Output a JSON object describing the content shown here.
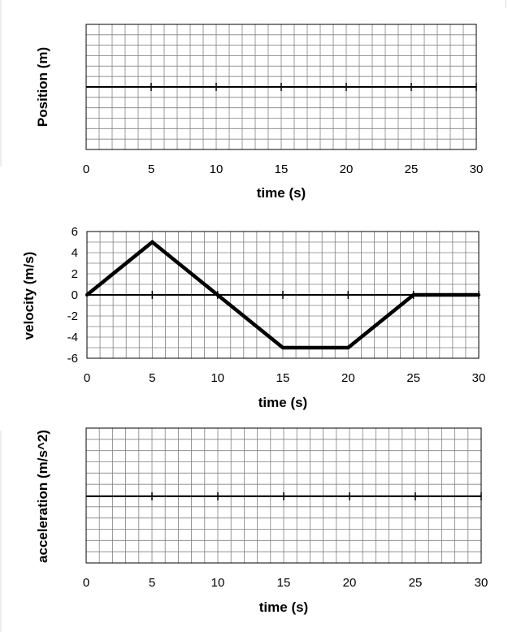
{
  "chart_data": [
    {
      "type": "line",
      "xlabel": "time (s)",
      "ylabel": "Position (m)",
      "xlim": [
        0,
        30
      ],
      "x_ticks": [
        "0",
        "5",
        "10",
        "15",
        "20",
        "25",
        "30"
      ],
      "y_ticks": [],
      "grid": true,
      "series": []
    },
    {
      "type": "line",
      "xlabel": "time (s)",
      "ylabel": "velocity (m/s)",
      "xlim": [
        0,
        30
      ],
      "ylim": [
        -6,
        6
      ],
      "x_ticks": [
        "0",
        "5",
        "10",
        "15",
        "20",
        "25",
        "30"
      ],
      "y_ticks": [
        "6",
        "4",
        "2",
        "0",
        "-2",
        "-4",
        "-6"
      ],
      "grid": true,
      "series": [
        {
          "x": [
            0,
            5,
            10,
            15,
            20,
            25,
            30
          ],
          "y": [
            0,
            5,
            0,
            -5,
            -5,
            0,
            0
          ],
          "color": "#000000"
        }
      ]
    },
    {
      "type": "line",
      "xlabel": "time (s)",
      "ylabel": "acceleration (m/s^2)",
      "xlim": [
        0,
        30
      ],
      "x_ticks": [
        "0",
        "5",
        "10",
        "15",
        "20",
        "25",
        "30"
      ],
      "y_ticks": [],
      "grid": true,
      "series": []
    }
  ]
}
